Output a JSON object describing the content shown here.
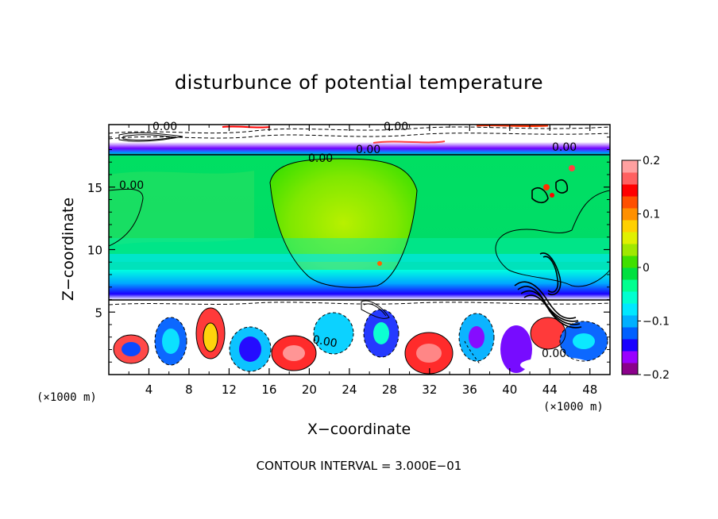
{
  "chart_data": {
    "type": "heatmap",
    "title": "disturbunce of potential temperature",
    "xlabel": "X−coordinate",
    "ylabel": "Z−coordinate",
    "x_unit": "(×1000 m)",
    "x_unit_right": "(×1000 m)",
    "xlim": [
      0,
      50
    ],
    "ylim": [
      0,
      20
    ],
    "x_ticks": [
      4,
      8,
      12,
      16,
      20,
      24,
      28,
      32,
      36,
      40,
      44,
      48
    ],
    "x_tick_labels": [
      "4",
      "8",
      "12",
      "16",
      "20",
      "24",
      "28",
      "32",
      "36",
      "40",
      "44",
      "48"
    ],
    "y_ticks": [
      5,
      10,
      15
    ],
    "y_tick_labels": [
      "5",
      "10",
      "15"
    ],
    "colorbar": {
      "range": [
        -0.2,
        0.2
      ],
      "ticks": [
        0.2,
        0.1,
        0,
        -0.1,
        -0.2
      ],
      "tick_labels": [
        "0.2",
        "0.1",
        "0",
        "−0.1",
        "−0.2"
      ],
      "colors": [
        "#8b008b",
        "#9a00ff",
        "#1a00ff",
        "#0060ff",
        "#00b0ff",
        "#00e8ff",
        "#00ffd0",
        "#00ff90",
        "#00e040",
        "#40e000",
        "#a0e800",
        "#e0f000",
        "#ffd000",
        "#ff9000",
        "#ff5000",
        "#ff0000",
        "#ff6060",
        "#ffa0a0"
      ]
    },
    "contour_labels": [
      "0.00",
      "0.00",
      "0.00",
      "0.00",
      "0.00",
      "0.00",
      "0.00",
      "0.00",
      "0.00",
      "0.00",
      "0.00",
      "0.00",
      "0.00"
    ],
    "footer": "CONTOUR INTERVAL = 3.000E−01"
  }
}
